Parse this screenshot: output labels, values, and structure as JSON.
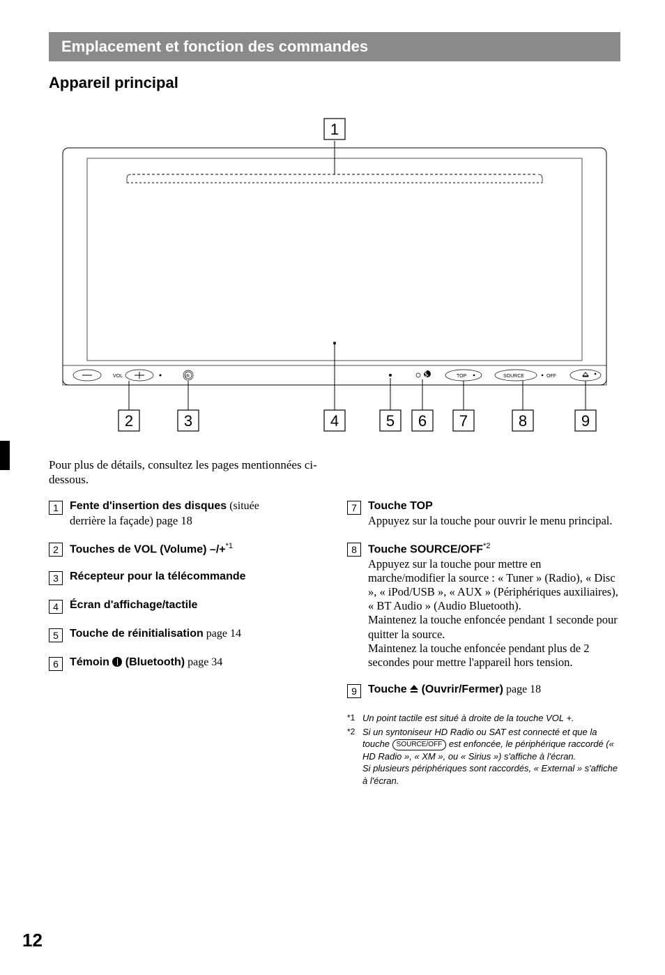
{
  "banner": "Emplacement et fonction des commandes",
  "subtitle": "Appareil principal",
  "intro": "Pour plus de détails, consultez les pages mentionnées ci-dessous.",
  "pageNumber": "12",
  "diagram": {
    "deviceLabels": {
      "vol": "VOL",
      "top": "TOP",
      "source": "SOURCE",
      "off": "OFF"
    },
    "callouts": [
      "1",
      "2",
      "3",
      "4",
      "5",
      "6",
      "7",
      "8",
      "9"
    ]
  },
  "leftItems": [
    {
      "num": "1",
      "title": "Fente d'insertion des disques",
      "trailingNormal": " (située",
      "desc": "derrière la façade)  page 18"
    },
    {
      "num": "2",
      "title": "Touches de VOL (Volume) –/+",
      "sup": "*1"
    },
    {
      "num": "3",
      "title": "Récepteur pour la télécommande"
    },
    {
      "num": "4",
      "title": "Écran d'affichage/tactile"
    },
    {
      "num": "5",
      "title": "Touche de réinitialisation",
      "trailingNormal": "  page 14"
    },
    {
      "num": "6",
      "title": "Témoin ",
      "btIcon": true,
      "titleAfter": " (Bluetooth)",
      "trailingNormal": "  page 34"
    }
  ],
  "rightItems": [
    {
      "num": "7",
      "title": "Touche TOP",
      "desc": "Appuyez sur la touche pour ouvrir le menu principal."
    },
    {
      "num": "8",
      "title": "Touche SOURCE/OFF",
      "sup": "*2",
      "desc": "Appuyez sur la touche pour mettre en marche/modifier la source : « Tuner » (Radio), « Disc », « iPod/USB », « AUX » (Périphériques auxiliaires), « BT Audio » (Audio Bluetooth).\nMaintenez la touche enfoncée pendant 1 seconde pour quitter la source.\nMaintenez la touche enfoncée pendant plus de 2 secondes pour mettre l'appareil hors tension."
    },
    {
      "num": "9",
      "title": "Touche ",
      "ejectIcon": true,
      "titleAfter": " (Ouvrir/Fermer)",
      "trailingNormal": "  page 18"
    }
  ],
  "notes": [
    {
      "mark": "*1",
      "text": "Un point tactile est situé à droite de la touche VOL +."
    },
    {
      "mark": "*2",
      "textParts": [
        "Si un syntoniseur HD Radio ou SAT est connecté et que la touche ",
        {
          "pill": "SOURCE/OFF"
        },
        " est enfoncée, le périphérique raccordé (« HD Radio », « XM », ou « Sirius ») s'affiche à l'écran.\nSi plusieurs périphériques sont raccordés, « External » s'affiche à l'écran."
      ]
    }
  ]
}
